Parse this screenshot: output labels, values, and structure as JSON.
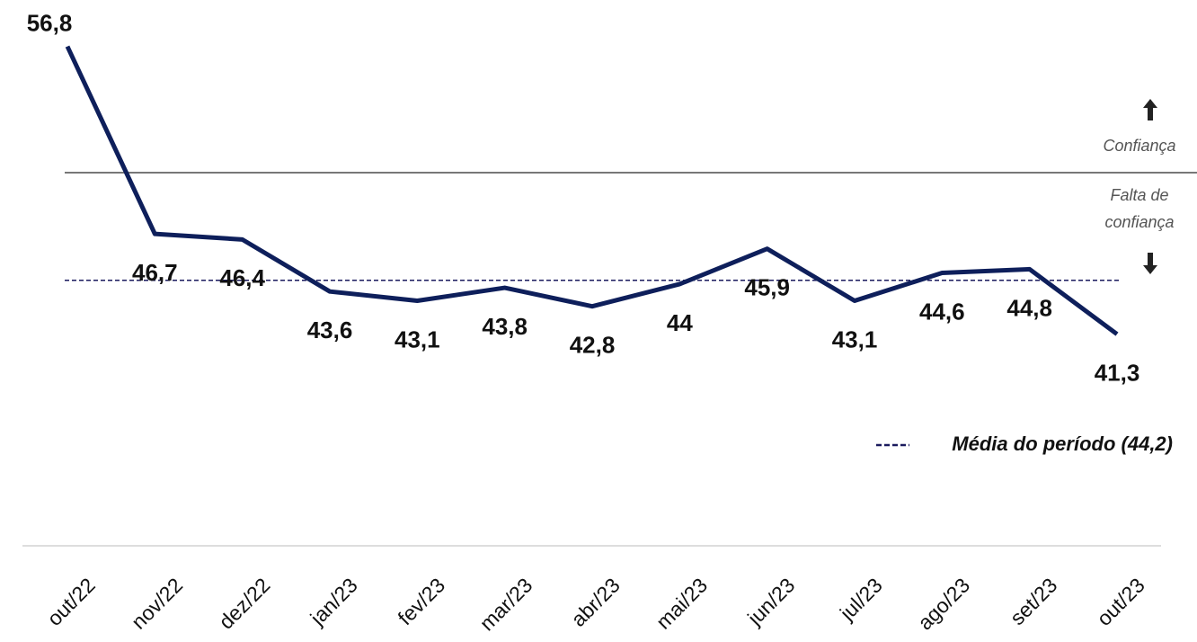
{
  "chart_data": {
    "type": "line",
    "categories": [
      "out/22",
      "nov/22",
      "dez/22",
      "jan/23",
      "fev/23",
      "mar/23",
      "abr/23",
      "mai/23",
      "jun/23",
      "jul/23",
      "ago/23",
      "set/23",
      "out/23"
    ],
    "series": [
      {
        "color": "#0e1f5b",
        "values": [
          56.8,
          46.7,
          46.4,
          43.6,
          43.1,
          43.8,
          42.8,
          44,
          45.9,
          43.1,
          44.6,
          44.8,
          41.3
        ],
        "value_labels": [
          "56,8",
          "46,7",
          "46,4",
          "43,6",
          "43,1",
          "43,8",
          "42,8",
          "44",
          "45,9",
          "43,1",
          "44,6",
          "44,8",
          "41,3"
        ]
      }
    ],
    "ylim": [
      30,
      59.3
    ],
    "reference_line": 50,
    "reference_above": "Confiança",
    "reference_below": "Falta de confiança",
    "mean": 44.2,
    "mean_label": "Média do período (44,2)",
    "mean_color": "#1a1a5e"
  }
}
